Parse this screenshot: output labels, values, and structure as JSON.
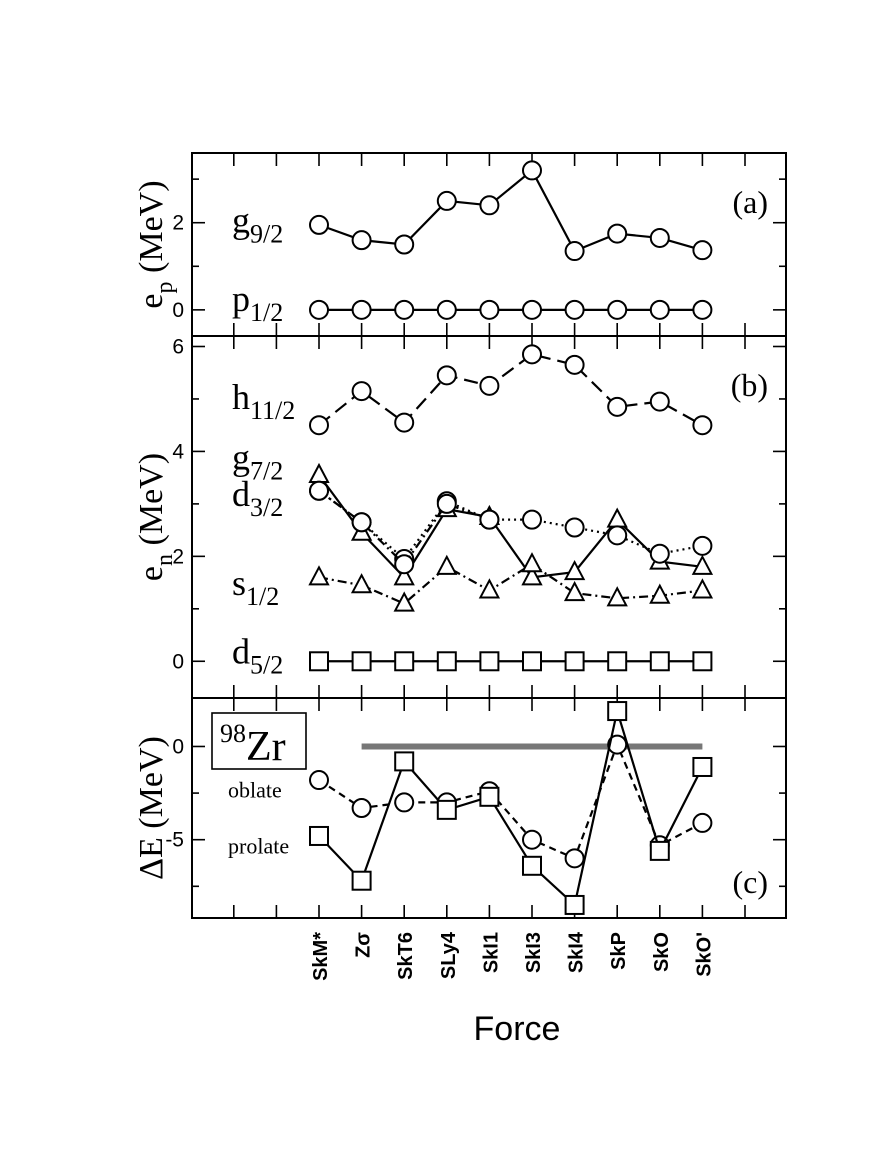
{
  "chart_data": {
    "type": "line",
    "xlabel": "Force",
    "categories": [
      "SkM*",
      "Zσ",
      "SkT6",
      "SLy4",
      "SkI1",
      "SkI3",
      "SkI4",
      "SkP",
      "SkO",
      "SkO'"
    ],
    "panels": [
      {
        "id": "a",
        "tag": "(a)",
        "ylabel": "e",
        "ylabel_sub": "p",
        "ylabel_unit": " (MeV)",
        "ylim": [
          -0.6,
          3.6
        ],
        "yticks": [
          0,
          2
        ],
        "series": [
          {
            "name": "g",
            "sub": "9/2",
            "marker": "circle",
            "dash": "solid",
            "label_y": 2.0,
            "indices": [
              0,
              1,
              2,
              3,
              4,
              5,
              6,
              7,
              8,
              9
            ],
            "values": [
              1.95,
              1.6,
              1.5,
              2.5,
              2.4,
              3.2,
              1.35,
              1.75,
              1.65,
              1.37
            ]
          },
          {
            "name": "p",
            "sub": "1/2",
            "marker": "circle",
            "dash": "solid",
            "label_y": 0.2,
            "indices": [
              0,
              1,
              2,
              3,
              4,
              5,
              6,
              7,
              8,
              9
            ],
            "values": [
              0,
              0,
              0,
              0,
              0,
              0,
              0,
              0,
              0,
              0
            ]
          }
        ]
      },
      {
        "id": "b",
        "tag": "(b)",
        "ylabel": "e",
        "ylabel_sub": "n",
        "ylabel_unit": " (MeV)",
        "ylim": [
          -0.7,
          6.2
        ],
        "yticks": [
          0,
          2,
          4,
          6
        ],
        "series": [
          {
            "name": "h",
            "sub": "11/2",
            "marker": "circle",
            "dash": "longdash",
            "label_y": 5.0,
            "indices": [
              0,
              1,
              2,
              3,
              4,
              5,
              6,
              7,
              8,
              9
            ],
            "values": [
              4.5,
              5.15,
              4.55,
              5.45,
              5.25,
              5.85,
              5.65,
              4.85,
              4.95,
              4.5
            ]
          },
          {
            "name": "g",
            "sub": "7/2",
            "marker": "triangle",
            "dash": "solid",
            "label_y": 3.85,
            "indices": [
              0,
              1,
              2,
              3,
              4,
              5,
              6,
              7,
              8,
              9
            ],
            "values": [
              3.55,
              2.45,
              1.6,
              2.9,
              2.75,
              1.6,
              1.7,
              2.7,
              1.9,
              1.8
            ]
          },
          {
            "name": "d",
            "sub": "3/2",
            "marker": "circle",
            "dash": "dotted",
            "label_y": 3.15,
            "indices": [
              0,
              1,
              2,
              3,
              4,
              5,
              6,
              7,
              8,
              9
            ],
            "values": [
              3.25,
              2.65,
              1.95,
              3.05,
              2.7,
              2.7,
              2.55,
              2.4,
              2.05,
              2.2
            ]
          },
          {
            "name": "d3/2-dashdot",
            "sub": "",
            "marker": "circle",
            "dash": "dashdot",
            "label_y": null,
            "indices": [
              0,
              1,
              2,
              3,
              4
            ],
            "values": [
              3.25,
              2.65,
              1.85,
              3.0,
              2.7
            ]
          },
          {
            "name": "s",
            "sub": "1/2",
            "marker": "triangle",
            "dash": "dashdot",
            "label_y": 1.45,
            "indices": [
              0,
              1,
              2,
              3,
              4,
              5,
              6,
              7,
              8,
              9
            ],
            "values": [
              1.6,
              1.45,
              1.1,
              1.8,
              1.35,
              1.85,
              1.3,
              1.2,
              1.25,
              1.35
            ]
          },
          {
            "name": "d",
            "sub": "5/2",
            "marker": "square",
            "dash": "solid",
            "label_y": 0.15,
            "indices": [
              0,
              1,
              2,
              3,
              4,
              5,
              6,
              7,
              8,
              9
            ],
            "values": [
              0,
              0,
              0,
              0,
              0,
              0,
              0,
              0,
              0,
              0
            ]
          }
        ]
      },
      {
        "id": "c",
        "tag": "(c)",
        "ylabel": "ΔE (MeV)",
        "ylim": [
          -9.2,
          2.6
        ],
        "yticks": [
          -5,
          0
        ],
        "nucleus_mass": "98",
        "nucleus_symbol": "Zr",
        "reference_line": {
          "y": 0,
          "from_index": 1,
          "to_index": 9,
          "color": "#777777"
        },
        "series": [
          {
            "name": "oblate",
            "marker": "circle",
            "dash": "dashed",
            "label_y": -2.2,
            "indices": [
              0,
              1,
              2,
              3,
              4,
              5,
              6,
              7,
              8,
              9
            ],
            "values": [
              -1.8,
              -3.3,
              -3.0,
              -3.0,
              -2.4,
              -5.0,
              -6.0,
              0.1,
              -5.3,
              -4.1
            ]
          },
          {
            "name": "prolate",
            "marker": "square",
            "dash": "solid",
            "label_y": -5.2,
            "indices": [
              0,
              1,
              2,
              3,
              4,
              5,
              6,
              7,
              8,
              9
            ],
            "values": [
              -4.8,
              -7.2,
              -0.8,
              -3.4,
              -2.7,
              -6.4,
              -8.5,
              1.9,
              -5.6,
              -1.1
            ]
          }
        ]
      }
    ]
  }
}
